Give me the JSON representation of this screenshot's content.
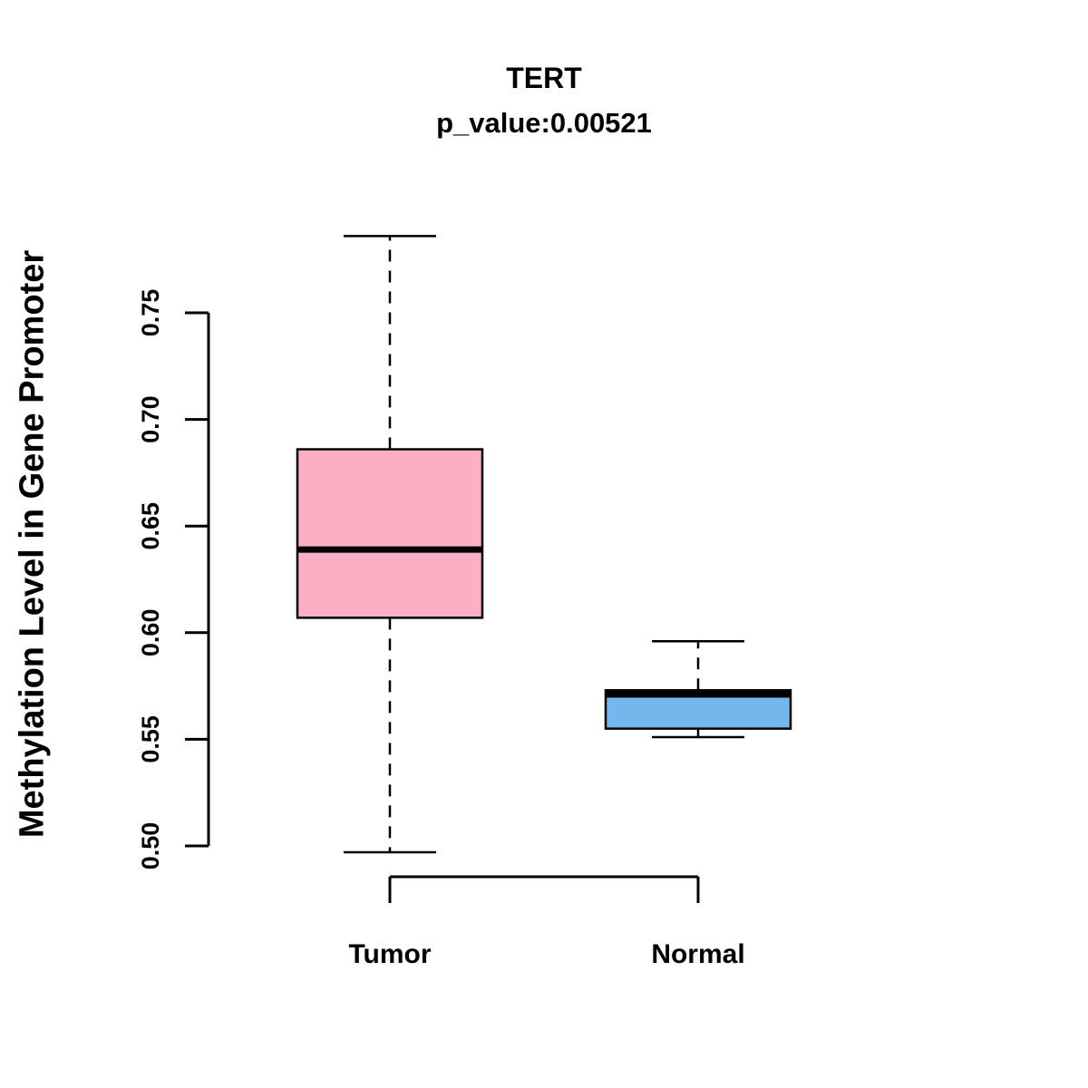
{
  "chart_data": {
    "type": "boxplot",
    "title": "TERT",
    "subtitle": "p_value:0.00521",
    "ylabel": "Methylation Level in Gene Promoter",
    "xlabel": "",
    "categories": [
      "Tumor",
      "Normal"
    ],
    "yticks": [
      0.5,
      0.55,
      0.6,
      0.65,
      0.7,
      0.75
    ],
    "ytick_labels": [
      "0.50",
      "0.55",
      "0.60",
      "0.65",
      "0.70",
      "0.75"
    ],
    "ylim": [
      0.497,
      0.786
    ],
    "grid": false,
    "legend": "none",
    "colors": {
      "axis": "#000000",
      "median": "#000000"
    },
    "series": [
      {
        "name": "Tumor",
        "color": "#FBAFC4",
        "whisker_low": 0.497,
        "q1": 0.607,
        "median": 0.639,
        "q3": 0.686,
        "whisker_high": 0.786
      },
      {
        "name": "Normal",
        "color": "#74B7EC",
        "whisker_low": 0.551,
        "q1": 0.555,
        "median": 0.571,
        "q3": 0.573,
        "whisker_high": 0.596
      }
    ]
  }
}
